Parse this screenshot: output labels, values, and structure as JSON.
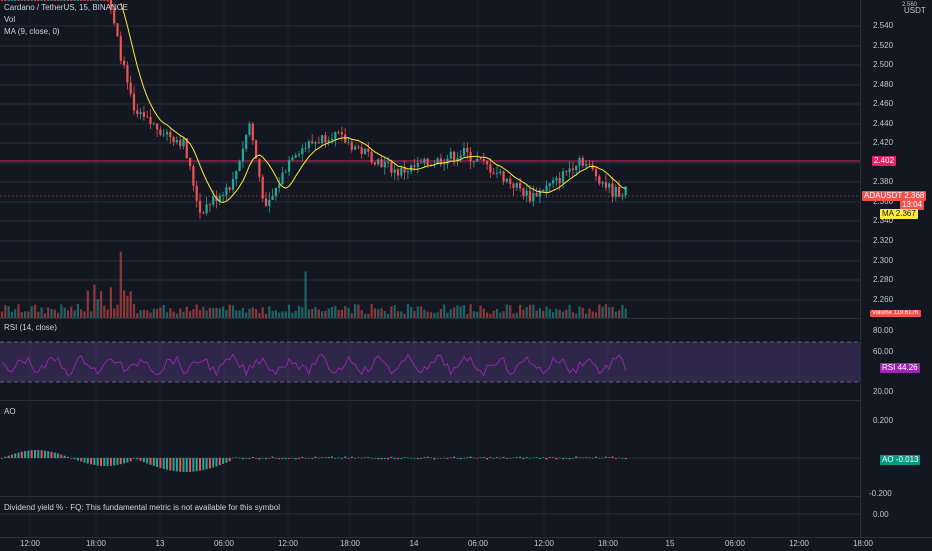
{
  "header": {
    "symbol_title": "Cardano / TetherUS, 15, BINANCE",
    "vol_label": "Vol",
    "ma_label": "MA (9, close, 0)",
    "currency": "USDT"
  },
  "price_axis": {
    "ticks": [
      "2.540",
      "2.520",
      "2.500",
      "2.480",
      "2.460",
      "2.440",
      "2.420",
      "2.400",
      "2.380",
      "2.360",
      "2.340",
      "2.320",
      "2.300",
      "2.280",
      "2.260"
    ],
    "top_tick": "2.560",
    "line_tag": "2.402",
    "symbol_tag": "ADAUSDT",
    "price_tag": "2.368",
    "countdown": "13:04",
    "ma_tag_label": "MA",
    "ma_tag_value": "2.367",
    "volume_tag": "Volume 119.617K"
  },
  "rsi": {
    "label": "RSI (14, close)",
    "ticks": [
      "80.00",
      "60.00",
      "20.00"
    ],
    "tag_label": "RSI",
    "tag_value": "44.26"
  },
  "ao": {
    "label": "AO",
    "ticks": [
      "0.200",
      "-0.200"
    ],
    "tag_label": "AO",
    "tag_value": "-0.013"
  },
  "fundamental": {
    "message": "Dividend yield % · FQ: This fundamental metric is not available for this symbol",
    "tick": "0.00"
  },
  "time_axis": [
    "12:00",
    "18:00",
    "13",
    "06:00",
    "12:00",
    "18:00",
    "14",
    "06:00",
    "12:00",
    "18:00",
    "15",
    "06:00",
    "12:00",
    "18:00"
  ],
  "colors": {
    "background": "#131722",
    "up": "#26a69a",
    "down": "#ef5350",
    "ma": "#ffeb3b",
    "rsi": "#9c27b0",
    "ao_up": "#26a69a",
    "ao_down": "#ef5350"
  }
}
